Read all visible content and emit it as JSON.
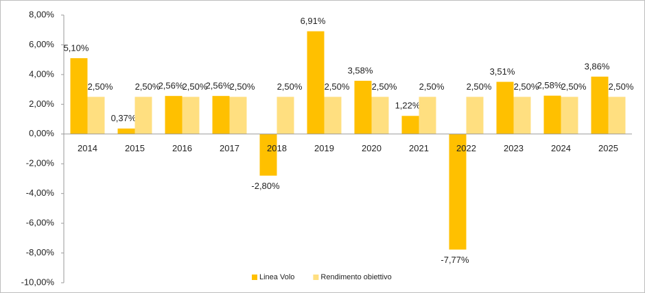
{
  "chart_data": {
    "type": "bar",
    "categories": [
      "2014",
      "2015",
      "2016",
      "2017",
      "2018",
      "2019",
      "2020",
      "2021",
      "2022",
      "2023",
      "2024",
      "2025"
    ],
    "series": [
      {
        "name": "Linea Volo",
        "color": "#ffc000",
        "values": [
          5.1,
          0.37,
          2.56,
          2.56,
          -2.8,
          6.91,
          3.58,
          1.22,
          -7.77,
          3.51,
          2.58,
          3.86
        ],
        "value_labels": [
          "5,10%",
          "0,37%",
          "2,56%",
          "2,56%",
          "-2,80%",
          "6,91%",
          "3,58%",
          "1,22%",
          "-7,77%",
          "3,51%",
          "2,58%",
          "3,86%"
        ]
      },
      {
        "name": "Rendimento obiettivo",
        "color": "#ffdf80",
        "values": [
          2.5,
          2.5,
          2.5,
          2.5,
          2.5,
          2.5,
          2.5,
          2.5,
          2.5,
          2.5,
          2.5,
          2.5
        ],
        "value_labels": [
          "2,50%",
          "2,50%",
          "2,50%",
          "2,50%",
          "2,50%",
          "2,50%",
          "2,50%",
          "2,50%",
          "2,50%",
          "2,50%",
          "2,50%",
          "2,50%"
        ]
      }
    ],
    "ylim": [
      -10,
      8
    ],
    "yticks": [
      {
        "value": 8,
        "label": "8,00%"
      },
      {
        "value": 6,
        "label": "6,00%"
      },
      {
        "value": 4,
        "label": "4,00%"
      },
      {
        "value": 2,
        "label": "2,00%"
      },
      {
        "value": 0,
        "label": "0,00%"
      },
      {
        "value": -2,
        "label": "-2,00%"
      },
      {
        "value": -4,
        "label": "-4,00%"
      },
      {
        "value": -6,
        "label": "-6,00%"
      },
      {
        "value": -8,
        "label": "-8,00%"
      },
      {
        "value": -10,
        "label": "-10,00%"
      }
    ],
    "legend": "bottom",
    "grid": false
  }
}
